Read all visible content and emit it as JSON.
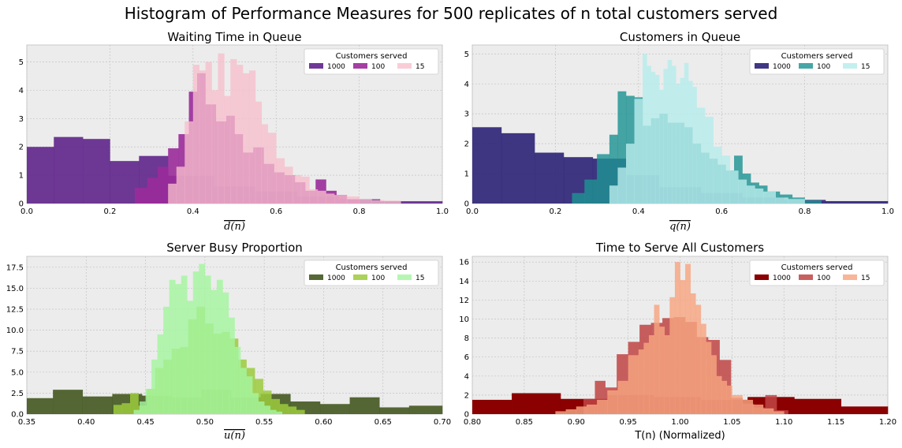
{
  "figure": {
    "title": "Histogram of Performance Measures for 500 replicates of n total customers served",
    "legend_title": "Customers served"
  },
  "chart_data": [
    {
      "type": "histogram",
      "title": "Waiting Time in Queue",
      "xlabel": "d(n)",
      "xlim": [
        0,
        1
      ],
      "ylim": [
        0,
        5.6
      ],
      "xticks": [
        "0.0",
        "0.2",
        "0.4",
        "0.6",
        "0.8",
        "1.0"
      ],
      "xtick_values": [
        0,
        0.2,
        0.4,
        0.6,
        0.8,
        1.0
      ],
      "yticks": [
        "0",
        "1",
        "2",
        "3",
        "4",
        "5"
      ],
      "ytick_values": [
        0,
        1,
        2,
        3,
        4,
        5
      ],
      "grid": true,
      "legend_position": "top-right",
      "series": [
        {
          "name": "1000",
          "color": "#5b1f88",
          "opacity": 0.88,
          "edges": [
            0,
            0.065,
            0.135,
            0.2,
            0.27,
            0.34,
            0.45,
            0.55,
            0.65,
            0.75,
            0.85,
            1.0
          ],
          "values": [
            2.0,
            2.35,
            2.28,
            1.5,
            1.68,
            0.98,
            0.6,
            0.42,
            0.25,
            0.15,
            0.08
          ]
        },
        {
          "name": "100",
          "color": "#9a2b9a",
          "opacity": 0.9,
          "edges": [
            0.26,
            0.29,
            0.315,
            0.34,
            0.365,
            0.39,
            0.41,
            0.43,
            0.455,
            0.48,
            0.5,
            0.52,
            0.545,
            0.57,
            0.595,
            0.62,
            0.645,
            0.67,
            0.695,
            0.72,
            0.745,
            0.77,
            0.8
          ],
          "values": [
            0.55,
            0.9,
            1.3,
            1.95,
            2.45,
            3.95,
            4.6,
            3.5,
            2.9,
            3.1,
            2.45,
            1.8,
            1.98,
            1.4,
            1.1,
            1.0,
            0.75,
            0.45,
            0.85,
            0.45,
            0.3,
            0.15
          ]
        },
        {
          "name": "15",
          "color": "#f7bfcc",
          "opacity": 0.78,
          "edges": [
            0.34,
            0.36,
            0.38,
            0.4,
            0.415,
            0.43,
            0.445,
            0.46,
            0.475,
            0.49,
            0.505,
            0.52,
            0.535,
            0.55,
            0.565,
            0.58,
            0.6,
            0.62,
            0.64,
            0.66,
            0.68,
            0.7,
            0.72,
            0.74,
            0.77,
            0.8,
            0.83,
            0.86,
            0.9
          ],
          "values": [
            0.7,
            1.3,
            2.9,
            4.9,
            4.7,
            5.0,
            4.0,
            5.3,
            3.8,
            5.1,
            4.9,
            4.6,
            4.7,
            3.6,
            2.8,
            2.5,
            1.6,
            1.3,
            1.0,
            0.95,
            0.5,
            0.45,
            0.35,
            0.3,
            0.25,
            0.15,
            0.12,
            0.1
          ]
        }
      ]
    },
    {
      "type": "histogram",
      "title": "Customers in Queue",
      "xlabel": "q(n)",
      "xlim": [
        0,
        1
      ],
      "ylim": [
        0,
        5.3
      ],
      "xticks": [
        "0.0",
        "0.2",
        "0.4",
        "0.6",
        "0.8",
        "1.0"
      ],
      "xtick_values": [
        0,
        0.2,
        0.4,
        0.6,
        0.8,
        1.0
      ],
      "yticks": [
        "0",
        "1",
        "2",
        "3",
        "4",
        "5"
      ],
      "ytick_values": [
        0,
        1,
        2,
        3,
        4,
        5
      ],
      "grid": true,
      "legend_position": "top-right",
      "series": [
        {
          "name": "1000",
          "color": "#2b2276",
          "opacity": 0.9,
          "edges": [
            0,
            0.07,
            0.15,
            0.22,
            0.29,
            0.37,
            0.45,
            0.55,
            0.65,
            0.75,
            0.85,
            1.0
          ],
          "values": [
            2.55,
            2.35,
            1.7,
            1.55,
            1.5,
            0.95,
            0.55,
            0.35,
            0.2,
            0.12,
            0.08
          ]
        },
        {
          "name": "100",
          "color": "#1f9393",
          "opacity": 0.82,
          "edges": [
            0.24,
            0.27,
            0.3,
            0.33,
            0.35,
            0.37,
            0.39,
            0.41,
            0.43,
            0.45,
            0.47,
            0.49,
            0.51,
            0.53,
            0.55,
            0.57,
            0.59,
            0.61,
            0.63,
            0.65,
            0.67,
            0.69,
            0.71,
            0.74,
            0.77,
            0.8,
            0.84
          ],
          "values": [
            0.35,
            0.8,
            1.65,
            2.3,
            3.75,
            3.6,
            3.55,
            2.6,
            2.85,
            3.0,
            2.7,
            2.7,
            2.55,
            2.0,
            1.7,
            1.5,
            1.3,
            1.1,
            1.6,
            1.0,
            0.7,
            0.6,
            0.4,
            0.3,
            0.2,
            0.1
          ]
        },
        {
          "name": "15",
          "color": "#b7ecec",
          "opacity": 0.82,
          "edges": [
            0.33,
            0.35,
            0.37,
            0.39,
            0.41,
            0.42,
            0.43,
            0.44,
            0.45,
            0.46,
            0.47,
            0.48,
            0.49,
            0.5,
            0.51,
            0.52,
            0.53,
            0.54,
            0.56,
            0.58,
            0.6,
            0.62,
            0.64,
            0.66,
            0.68,
            0.7,
            0.73,
            0.76,
            0.8
          ],
          "values": [
            0.6,
            1.2,
            2.0,
            3.5,
            5.0,
            4.6,
            4.4,
            4.3,
            3.8,
            4.5,
            4.8,
            4.6,
            4.0,
            4.2,
            4.7,
            4.1,
            3.9,
            3.2,
            2.9,
            1.9,
            1.6,
            1.1,
            0.8,
            0.6,
            0.5,
            0.4,
            0.2,
            0.15
          ]
        }
      ]
    },
    {
      "type": "histogram",
      "title": "Server Busy Proportion",
      "xlabel": "u(n)",
      "xlim": [
        0.35,
        0.7
      ],
      "ylim": [
        0,
        18.8
      ],
      "xticks": [
        "0.35",
        "0.40",
        "0.45",
        "0.50",
        "0.55",
        "0.60",
        "0.65",
        "0.70"
      ],
      "xtick_values": [
        0.35,
        0.4,
        0.45,
        0.5,
        0.55,
        0.6,
        0.65,
        0.7
      ],
      "yticks": [
        "0.0",
        "2.5",
        "5.0",
        "7.5",
        "10.0",
        "12.5",
        "15.0",
        "17.5"
      ],
      "ytick_values": [
        0,
        2.5,
        5,
        7.5,
        10,
        12.5,
        15,
        17.5
      ],
      "grid": true,
      "legend_position": "top-right",
      "series": [
        {
          "name": "1000",
          "color": "#3e531a",
          "opacity": 0.88,
          "edges": [
            0.35,
            0.372,
            0.397,
            0.422,
            0.447,
            0.472,
            0.497,
            0.522,
            0.547,
            0.572,
            0.597,
            0.622,
            0.647,
            0.672,
            0.7
          ],
          "values": [
            1.9,
            2.9,
            2.1,
            2.4,
            2.2,
            2.0,
            2.9,
            2.0,
            2.4,
            1.5,
            1.2,
            2.0,
            0.8,
            1.0
          ]
        },
        {
          "name": "100",
          "color": "#9cca3c",
          "opacity": 0.85,
          "edges": [
            0.423,
            0.43,
            0.437,
            0.444,
            0.451,
            0.458,
            0.465,
            0.472,
            0.479,
            0.486,
            0.493,
            0.5,
            0.507,
            0.514,
            0.521,
            0.528,
            0.535,
            0.542,
            0.549,
            0.556,
            0.563,
            0.57,
            0.577,
            0.584
          ],
          "values": [
            1.1,
            1.3,
            2.5,
            1.0,
            3.0,
            5.5,
            6.5,
            7.8,
            8.0,
            11.3,
            12.8,
            10.8,
            9.6,
            9.8,
            9.0,
            6.5,
            5.5,
            4.2,
            2.8,
            1.8,
            1.2,
            0.9,
            0.5
          ]
        },
        {
          "name": "15",
          "color": "#a5f5a0",
          "opacity": 0.82,
          "edges": [
            0.44,
            0.445,
            0.45,
            0.455,
            0.46,
            0.465,
            0.47,
            0.475,
            0.48,
            0.485,
            0.49,
            0.495,
            0.5,
            0.505,
            0.51,
            0.515,
            0.52,
            0.525,
            0.53,
            0.535,
            0.54,
            0.545,
            0.55,
            0.555,
            0.56,
            0.565
          ],
          "values": [
            0.5,
            1.5,
            3.0,
            6.5,
            9.5,
            12.8,
            16.0,
            15.5,
            16.5,
            13.5,
            17.0,
            17.9,
            16.5,
            14.8,
            16.0,
            14.5,
            11.5,
            8.0,
            5.5,
            4.5,
            2.5,
            1.5,
            1.0,
            0.5,
            0.3
          ]
        }
      ]
    },
    {
      "type": "histogram",
      "title": "Time to Serve All Customers",
      "xlabel": "T(n) (Normalized)",
      "xlim": [
        0.8,
        1.2
      ],
      "ylim": [
        0,
        16.6
      ],
      "xticks": [
        "0.80",
        "0.85",
        "0.90",
        "0.95",
        "1.00",
        "1.05",
        "1.10",
        "1.15",
        "1.20"
      ],
      "xtick_values": [
        0.8,
        0.85,
        0.9,
        0.95,
        1.0,
        1.05,
        1.1,
        1.15,
        1.2
      ],
      "yticks": [
        "0",
        "2",
        "4",
        "6",
        "8",
        "10",
        "12",
        "14",
        "16"
      ],
      "ytick_values": [
        0,
        2,
        4,
        6,
        8,
        10,
        12,
        14,
        16
      ],
      "grid": true,
      "legend_position": "top-right",
      "series": [
        {
          "name": "1000",
          "color": "#8b0000",
          "opacity": 1.0,
          "edges": [
            0.8,
            0.838,
            0.885,
            0.93,
            0.975,
            1.02,
            1.065,
            1.11,
            1.155,
            1.2
          ],
          "values": [
            1.5,
            2.2,
            1.6,
            2.0,
            1.8,
            1.5,
            1.8,
            1.6,
            0.8
          ]
        },
        {
          "name": "100",
          "color": "#c04444",
          "opacity": 0.85,
          "edges": [
            0.907,
            0.918,
            0.928,
            0.939,
            0.95,
            0.961,
            0.972,
            0.983,
            0.994,
            1.005,
            1.016,
            1.027,
            1.038,
            1.049,
            1.06,
            1.071,
            1.082,
            1.093,
            1.104
          ],
          "values": [
            1.6,
            3.5,
            2.8,
            6.3,
            7.6,
            9.4,
            9.6,
            10.1,
            10.2,
            9.7,
            8.1,
            7.8,
            5.7,
            1.7,
            1.1,
            0.7,
            2.0,
            0.4
          ]
        },
        {
          "name": "15",
          "color": "#f7a580",
          "opacity": 0.82,
          "edges": [
            0.88,
            0.89,
            0.9,
            0.91,
            0.92,
            0.93,
            0.94,
            0.95,
            0.96,
            0.965,
            0.97,
            0.975,
            0.98,
            0.985,
            0.99,
            0.995,
            1.0,
            1.005,
            1.01,
            1.015,
            1.02,
            1.025,
            1.03,
            1.035,
            1.04,
            1.045,
            1.05,
            1.06,
            1.07,
            1.08,
            1.09,
            1.1
          ],
          "values": [
            0.3,
            0.5,
            0.8,
            1.0,
            1.5,
            2.5,
            3.5,
            6.2,
            6.8,
            7.5,
            8.3,
            11.5,
            9.2,
            8.3,
            12.3,
            16.0,
            14.1,
            15.8,
            12.7,
            11.5,
            9.5,
            7.6,
            6.2,
            4.0,
            3.5,
            3.0,
            2.0,
            1.5,
            1.0,
            0.6,
            0.3
          ]
        }
      ]
    }
  ]
}
